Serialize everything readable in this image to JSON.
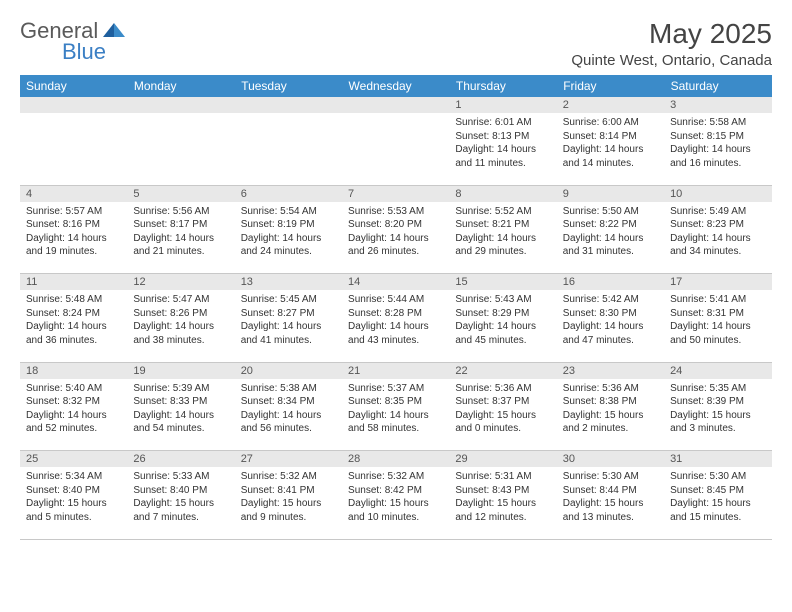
{
  "logo": {
    "text_general": "General",
    "text_blue": "Blue"
  },
  "title": "May 2025",
  "location": "Quinte West, Ontario, Canada",
  "header_bg": "#3b8bc9",
  "daynum_bg": "#e8e8e8",
  "weekdays": [
    "Sunday",
    "Monday",
    "Tuesday",
    "Wednesday",
    "Thursday",
    "Friday",
    "Saturday"
  ],
  "weeks": [
    {
      "nums": [
        "",
        "",
        "",
        "",
        "1",
        "2",
        "3"
      ],
      "cells": [
        null,
        null,
        null,
        null,
        {
          "sunrise": "Sunrise: 6:01 AM",
          "sunset": "Sunset: 8:13 PM",
          "day1": "Daylight: 14 hours",
          "day2": "and 11 minutes."
        },
        {
          "sunrise": "Sunrise: 6:00 AM",
          "sunset": "Sunset: 8:14 PM",
          "day1": "Daylight: 14 hours",
          "day2": "and 14 minutes."
        },
        {
          "sunrise": "Sunrise: 5:58 AM",
          "sunset": "Sunset: 8:15 PM",
          "day1": "Daylight: 14 hours",
          "day2": "and 16 minutes."
        }
      ]
    },
    {
      "nums": [
        "4",
        "5",
        "6",
        "7",
        "8",
        "9",
        "10"
      ],
      "cells": [
        {
          "sunrise": "Sunrise: 5:57 AM",
          "sunset": "Sunset: 8:16 PM",
          "day1": "Daylight: 14 hours",
          "day2": "and 19 minutes."
        },
        {
          "sunrise": "Sunrise: 5:56 AM",
          "sunset": "Sunset: 8:17 PM",
          "day1": "Daylight: 14 hours",
          "day2": "and 21 minutes."
        },
        {
          "sunrise": "Sunrise: 5:54 AM",
          "sunset": "Sunset: 8:19 PM",
          "day1": "Daylight: 14 hours",
          "day2": "and 24 minutes."
        },
        {
          "sunrise": "Sunrise: 5:53 AM",
          "sunset": "Sunset: 8:20 PM",
          "day1": "Daylight: 14 hours",
          "day2": "and 26 minutes."
        },
        {
          "sunrise": "Sunrise: 5:52 AM",
          "sunset": "Sunset: 8:21 PM",
          "day1": "Daylight: 14 hours",
          "day2": "and 29 minutes."
        },
        {
          "sunrise": "Sunrise: 5:50 AM",
          "sunset": "Sunset: 8:22 PM",
          "day1": "Daylight: 14 hours",
          "day2": "and 31 minutes."
        },
        {
          "sunrise": "Sunrise: 5:49 AM",
          "sunset": "Sunset: 8:23 PM",
          "day1": "Daylight: 14 hours",
          "day2": "and 34 minutes."
        }
      ]
    },
    {
      "nums": [
        "11",
        "12",
        "13",
        "14",
        "15",
        "16",
        "17"
      ],
      "cells": [
        {
          "sunrise": "Sunrise: 5:48 AM",
          "sunset": "Sunset: 8:24 PM",
          "day1": "Daylight: 14 hours",
          "day2": "and 36 minutes."
        },
        {
          "sunrise": "Sunrise: 5:47 AM",
          "sunset": "Sunset: 8:26 PM",
          "day1": "Daylight: 14 hours",
          "day2": "and 38 minutes."
        },
        {
          "sunrise": "Sunrise: 5:45 AM",
          "sunset": "Sunset: 8:27 PM",
          "day1": "Daylight: 14 hours",
          "day2": "and 41 minutes."
        },
        {
          "sunrise": "Sunrise: 5:44 AM",
          "sunset": "Sunset: 8:28 PM",
          "day1": "Daylight: 14 hours",
          "day2": "and 43 minutes."
        },
        {
          "sunrise": "Sunrise: 5:43 AM",
          "sunset": "Sunset: 8:29 PM",
          "day1": "Daylight: 14 hours",
          "day2": "and 45 minutes."
        },
        {
          "sunrise": "Sunrise: 5:42 AM",
          "sunset": "Sunset: 8:30 PM",
          "day1": "Daylight: 14 hours",
          "day2": "and 47 minutes."
        },
        {
          "sunrise": "Sunrise: 5:41 AM",
          "sunset": "Sunset: 8:31 PM",
          "day1": "Daylight: 14 hours",
          "day2": "and 50 minutes."
        }
      ]
    },
    {
      "nums": [
        "18",
        "19",
        "20",
        "21",
        "22",
        "23",
        "24"
      ],
      "cells": [
        {
          "sunrise": "Sunrise: 5:40 AM",
          "sunset": "Sunset: 8:32 PM",
          "day1": "Daylight: 14 hours",
          "day2": "and 52 minutes."
        },
        {
          "sunrise": "Sunrise: 5:39 AM",
          "sunset": "Sunset: 8:33 PM",
          "day1": "Daylight: 14 hours",
          "day2": "and 54 minutes."
        },
        {
          "sunrise": "Sunrise: 5:38 AM",
          "sunset": "Sunset: 8:34 PM",
          "day1": "Daylight: 14 hours",
          "day2": "and 56 minutes."
        },
        {
          "sunrise": "Sunrise: 5:37 AM",
          "sunset": "Sunset: 8:35 PM",
          "day1": "Daylight: 14 hours",
          "day2": "and 58 minutes."
        },
        {
          "sunrise": "Sunrise: 5:36 AM",
          "sunset": "Sunset: 8:37 PM",
          "day1": "Daylight: 15 hours",
          "day2": "and 0 minutes."
        },
        {
          "sunrise": "Sunrise: 5:36 AM",
          "sunset": "Sunset: 8:38 PM",
          "day1": "Daylight: 15 hours",
          "day2": "and 2 minutes."
        },
        {
          "sunrise": "Sunrise: 5:35 AM",
          "sunset": "Sunset: 8:39 PM",
          "day1": "Daylight: 15 hours",
          "day2": "and 3 minutes."
        }
      ]
    },
    {
      "nums": [
        "25",
        "26",
        "27",
        "28",
        "29",
        "30",
        "31"
      ],
      "cells": [
        {
          "sunrise": "Sunrise: 5:34 AM",
          "sunset": "Sunset: 8:40 PM",
          "day1": "Daylight: 15 hours",
          "day2": "and 5 minutes."
        },
        {
          "sunrise": "Sunrise: 5:33 AM",
          "sunset": "Sunset: 8:40 PM",
          "day1": "Daylight: 15 hours",
          "day2": "and 7 minutes."
        },
        {
          "sunrise": "Sunrise: 5:32 AM",
          "sunset": "Sunset: 8:41 PM",
          "day1": "Daylight: 15 hours",
          "day2": "and 9 minutes."
        },
        {
          "sunrise": "Sunrise: 5:32 AM",
          "sunset": "Sunset: 8:42 PM",
          "day1": "Daylight: 15 hours",
          "day2": "and 10 minutes."
        },
        {
          "sunrise": "Sunrise: 5:31 AM",
          "sunset": "Sunset: 8:43 PM",
          "day1": "Daylight: 15 hours",
          "day2": "and 12 minutes."
        },
        {
          "sunrise": "Sunrise: 5:30 AM",
          "sunset": "Sunset: 8:44 PM",
          "day1": "Daylight: 15 hours",
          "day2": "and 13 minutes."
        },
        {
          "sunrise": "Sunrise: 5:30 AM",
          "sunset": "Sunset: 8:45 PM",
          "day1": "Daylight: 15 hours",
          "day2": "and 15 minutes."
        }
      ]
    }
  ]
}
